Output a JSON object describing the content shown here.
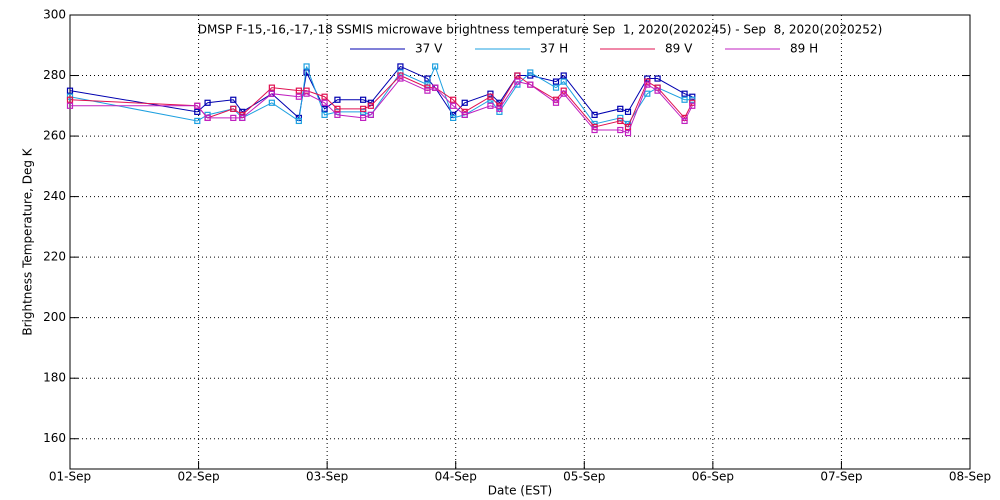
{
  "chart_data": {
    "type": "line",
    "title": "DMSP F-15,-16,-17,-18 SSMIS microwave brightness temperature Sep  1, 2020(2020245) - Sep  8, 2020(2020252)",
    "x_label": "Date (EST)",
    "y_label": "Brightness Temperature, Deg K",
    "x": [
      0,
      0.99,
      1.07,
      1.27,
      1.34,
      1.57,
      1.78,
      1.84,
      1.98,
      2.08,
      2.28,
      2.34,
      2.57,
      2.78,
      2.84,
      2.98,
      3.07,
      3.27,
      3.34,
      3.48,
      3.58,
      3.78,
      3.84,
      4.08,
      4.28,
      4.34,
      4.49,
      4.57,
      4.78,
      4.84
    ],
    "series": [
      {
        "name": "37 V",
        "color": "#0000b0",
        "values": [
          275,
          268,
          271,
          272,
          268,
          274,
          266,
          281,
          269,
          272,
          272,
          271,
          283,
          279,
          276,
          267,
          271,
          274,
          271,
          280,
          280,
          278,
          280,
          267,
          269,
          268,
          279,
          279,
          274,
          273
        ]
      },
      {
        "name": "37 H",
        "color": "#1ea0e0",
        "values": [
          273,
          265,
          267,
          269,
          266,
          271,
          265,
          283,
          267,
          268,
          268,
          267,
          281,
          277,
          283,
          266,
          267,
          272,
          268,
          277,
          281,
          276,
          278,
          264,
          266,
          264,
          274,
          276,
          272,
          272
        ]
      },
      {
        "name": "89 V",
        "color": "#e01050",
        "values": [
          272,
          270,
          266,
          269,
          267,
          276,
          275,
          275,
          273,
          269,
          269,
          270,
          280,
          276,
          276,
          272,
          268,
          273,
          270,
          280,
          277,
          272,
          275,
          263,
          265,
          263,
          278,
          276,
          266,
          271
        ]
      },
      {
        "name": "89 H",
        "color": "#c020c0",
        "values": [
          270,
          270,
          266,
          266,
          266,
          274,
          273,
          274,
          271,
          267,
          266,
          267,
          279,
          275,
          276,
          270,
          267,
          270,
          269,
          278,
          277,
          271,
          274,
          262,
          262,
          261,
          277,
          275,
          265,
          270
        ]
      }
    ],
    "xlim": [
      0,
      7
    ],
    "xticks": [
      {
        "value": 0,
        "label": "01-Sep"
      },
      {
        "value": 1,
        "label": "02-Sep"
      },
      {
        "value": 2,
        "label": "03-Sep"
      },
      {
        "value": 3,
        "label": "04-Sep"
      },
      {
        "value": 4,
        "label": "05-Sep"
      },
      {
        "value": 5,
        "label": "06-Sep"
      },
      {
        "value": 6,
        "label": "07-Sep"
      },
      {
        "value": 7,
        "label": "08-Sep"
      }
    ],
    "ylim": [
      150,
      300
    ],
    "yticks": [
      160,
      180,
      200,
      220,
      240,
      260,
      280,
      300
    ],
    "grid": true
  }
}
